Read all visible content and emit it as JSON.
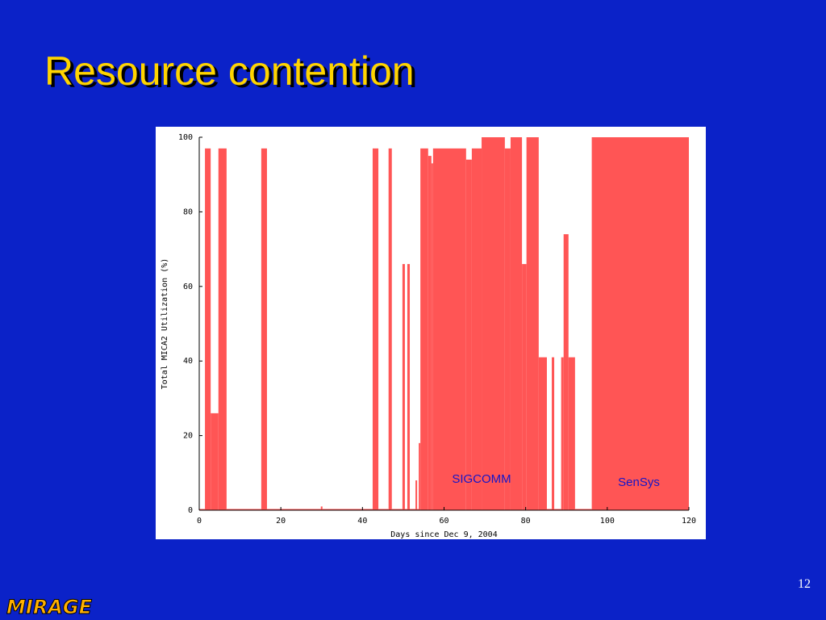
{
  "slide": {
    "title": "Resource contention",
    "page_number": "12",
    "logo": "MIRAGE"
  },
  "chart_data": {
    "type": "histogram",
    "xlabel": "Days since Dec 9, 2004",
    "ylabel": "Total MICA2 Utilization (%)",
    "color": "#ff5555",
    "annotations": [
      "SIGCOMM",
      "SenSys"
    ],
    "annotation_color": "#1515c8",
    "bins": [
      0,
      1.4,
      2.8,
      4.7,
      6.7,
      15.2,
      16.6,
      29.8,
      30.2,
      42.5,
      43.9,
      46.4,
      47.2,
      49.8,
      50.4,
      51,
      51.6,
      53,
      53.4,
      53.8,
      54.2,
      56.1,
      56.9,
      57.3,
      65.4,
      66.8,
      69.2,
      74.9,
      76.3,
      79.1,
      80.2,
      83.2,
      85.2,
      86.4,
      87,
      88.7,
      89.3,
      90.5,
      92.1,
      96.2,
      120
    ],
    "values": [
      0,
      97,
      26,
      97,
      0,
      97,
      0,
      1,
      0,
      97,
      0,
      97,
      0,
      66,
      0,
      66,
      0,
      8,
      0,
      18,
      97,
      95,
      93,
      97,
      94,
      97,
      100,
      97,
      100,
      66,
      100,
      41,
      0,
      41,
      0,
      41,
      74,
      41,
      0,
      100
    ],
    "xlim": [
      0,
      120
    ],
    "xticks": [
      0,
      20,
      40,
      60,
      80,
      100,
      120
    ],
    "ylim": [
      0,
      100
    ],
    "yticks": [
      0,
      20,
      40,
      60,
      80,
      100
    ]
  }
}
